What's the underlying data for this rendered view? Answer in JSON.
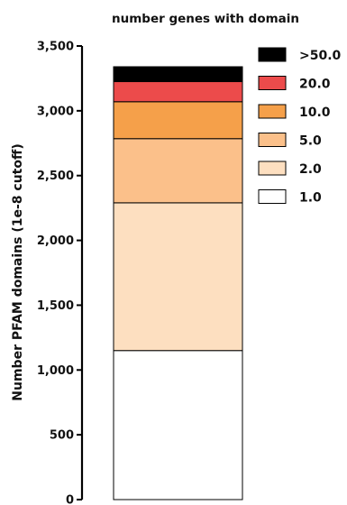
{
  "chart_data": {
    "type": "bar",
    "stacked": true,
    "title": "",
    "xlabel": "",
    "ylabel": "Number PFAM domains (1e-8 cutoff)",
    "ylim": [
      0,
      3500
    ],
    "yticks": [
      0,
      500,
      1000,
      1500,
      2000,
      2500,
      3000,
      3500
    ],
    "ytick_labels": [
      "0",
      "500",
      "1,000",
      "1,500",
      "2,000",
      "2,500",
      "3,000",
      "3,500"
    ],
    "grid": false,
    "legend": {
      "title": "number genes with domain",
      "placement": "right"
    },
    "categories": [
      ""
    ],
    "series": [
      {
        "name": "1.0",
        "values": [
          1150
        ],
        "color": "#ffffff"
      },
      {
        "name": "2.0",
        "values": [
          1140
        ],
        "color": "#fddfc0"
      },
      {
        "name": "5.0",
        "values": [
          495
        ],
        "color": "#fbc08a"
      },
      {
        "name": "10.0",
        "values": [
          285
        ],
        "color": "#f5a04a"
      },
      {
        "name": "20.0",
        "values": [
          155
        ],
        "color": "#ec4b4b"
      },
      {
        "name": ">50.0",
        "values": [
          115
        ],
        "color": "#000000"
      }
    ]
  }
}
